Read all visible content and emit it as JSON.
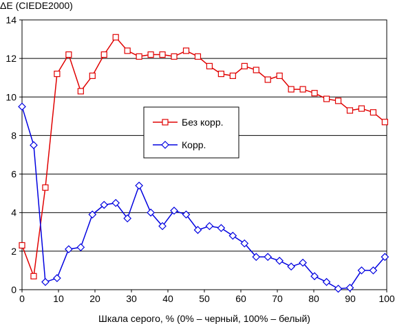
{
  "chart_data": {
    "type": "line",
    "title": "",
    "xlabel": "Шкала серого, % (0% – черный, 100% – белый)",
    "ylabel": "ΔE (CIEDE2000)",
    "xlim": [
      0,
      100
    ],
    "ylim": [
      0,
      14
    ],
    "xticks": [
      0,
      10,
      20,
      30,
      40,
      50,
      60,
      70,
      80,
      90,
      100
    ],
    "yticks": [
      0,
      2,
      4,
      6,
      8,
      10,
      12,
      14
    ],
    "grid": "horizontal",
    "legend_position": "center",
    "series": [
      {
        "name": "Без корр.",
        "color": "#e00000",
        "marker": "square",
        "x": [
          0,
          3.2,
          6.4,
          9.6,
          12.8,
          16.1,
          19.3,
          22.5,
          25.7,
          28.9,
          32.1,
          35.3,
          38.5,
          41.7,
          45.0,
          48.2,
          51.4,
          54.6,
          57.8,
          61.0,
          64.2,
          67.4,
          70.6,
          73.8,
          77.0,
          80.2,
          83.5,
          86.7,
          89.9,
          93.1,
          96.3,
          99.5
        ],
        "y": [
          2.3,
          0.7,
          5.3,
          11.2,
          12.2,
          10.3,
          11.1,
          12.2,
          13.1,
          12.4,
          12.1,
          12.2,
          12.2,
          12.1,
          12.4,
          12.1,
          11.6,
          11.2,
          11.1,
          11.6,
          11.4,
          10.9,
          11.1,
          10.4,
          10.4,
          10.2,
          9.9,
          9.8,
          9.3,
          9.4,
          9.2,
          8.7
        ]
      },
      {
        "name": "Корр.",
        "color": "#0000e0",
        "marker": "diamond",
        "x": [
          0,
          3.2,
          6.4,
          9.6,
          12.8,
          16.1,
          19.3,
          22.5,
          25.7,
          28.9,
          32.1,
          35.3,
          38.5,
          41.7,
          45.0,
          48.2,
          51.4,
          54.6,
          57.8,
          61.0,
          64.2,
          67.4,
          70.6,
          73.8,
          77.0,
          80.2,
          83.5,
          86.7,
          89.9,
          93.1,
          96.3,
          99.5
        ],
        "y": [
          9.5,
          7.5,
          0.4,
          0.6,
          2.1,
          2.2,
          3.9,
          4.4,
          4.5,
          3.7,
          5.4,
          4.0,
          3.3,
          4.1,
          3.9,
          3.1,
          3.3,
          3.2,
          2.8,
          2.4,
          1.7,
          1.7,
          1.5,
          1.2,
          1.4,
          0.7,
          0.4,
          0.05,
          0.1,
          1.0,
          1.0,
          1.7
        ]
      }
    ]
  }
}
